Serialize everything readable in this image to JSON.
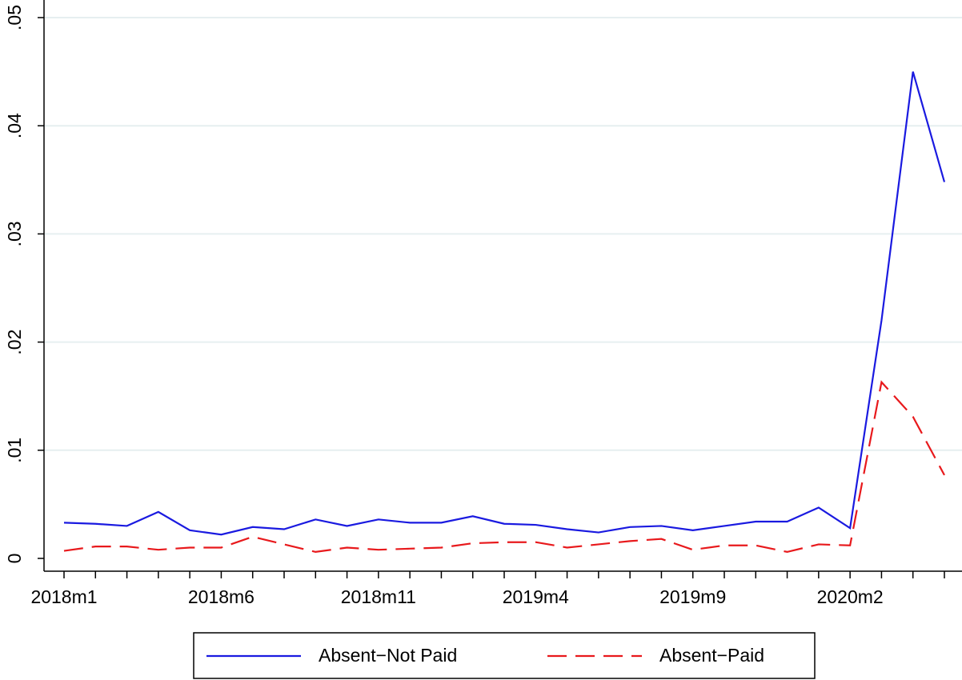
{
  "chart_data": {
    "type": "line",
    "categories": [
      "2018m1",
      null,
      null,
      null,
      null,
      "2018m6",
      null,
      null,
      null,
      null,
      "2018m11",
      null,
      null,
      null,
      null,
      "2019m4",
      null,
      null,
      null,
      null,
      "2019m9",
      null,
      null,
      null,
      null,
      "2020m2",
      null,
      null,
      null
    ],
    "series": [
      {
        "name": "Absent−Not Paid",
        "color": "#1a1ae0",
        "dash": "solid",
        "values": [
          0.0033,
          0.0032,
          0.003,
          0.0043,
          0.0026,
          0.0022,
          0.0029,
          0.0027,
          0.0036,
          0.003,
          0.0036,
          0.0033,
          0.0033,
          0.0039,
          0.0032,
          0.0031,
          0.0027,
          0.0024,
          0.0029,
          0.003,
          0.0026,
          0.003,
          0.0034,
          0.0034,
          0.0047,
          0.0028,
          0.022,
          0.045,
          0.0348
        ]
      },
      {
        "name": "Absent−Paid",
        "color": "#e8191c",
        "dash": "dashed",
        "values": [
          0.0007,
          0.0011,
          0.0011,
          0.0008,
          0.001,
          0.001,
          0.002,
          0.0013,
          0.0006,
          0.001,
          0.0008,
          0.0009,
          0.001,
          0.0014,
          0.0015,
          0.0015,
          0.001,
          0.0013,
          0.0016,
          0.0018,
          0.0008,
          0.0012,
          0.0012,
          0.0006,
          0.0013,
          0.0012,
          0.0163,
          0.0131,
          0.0077
        ]
      }
    ],
    "ylim": [
      0,
      0.05
    ],
    "yticks": [
      0,
      {
        "value": 0.01,
        "label": ".01"
      },
      {
        "value": 0.02,
        "label": ".02"
      },
      {
        "value": 0.03,
        "label": ".03"
      },
      {
        "value": 0.04,
        "label": ".04"
      },
      {
        "value": 0.05,
        "label": ".05"
      }
    ],
    "grid": true,
    "legend": "bottom"
  }
}
